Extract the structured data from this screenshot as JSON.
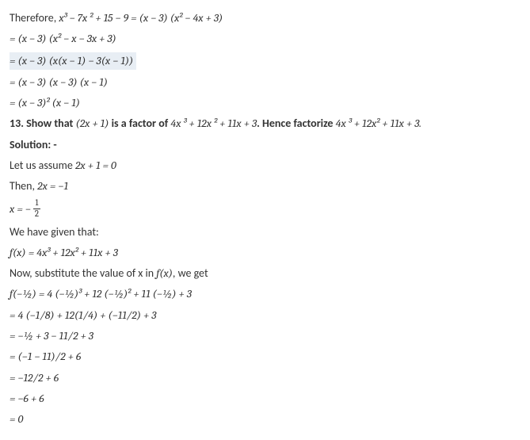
{
  "text_color": "#333333",
  "background_color": "#ffffff",
  "highlight_color": "#e8eef4",
  "font_family": "Calibri, 'Segoe UI', Arial, sans-serif",
  "font_size_pt": 10.5,
  "lines": {
    "l1_prefix": "Therefore, ",
    "l1_math": "x³ − 7x ² + 15 − 9  =  (x − 3) (x² − 4x + 3)",
    "l2": "=  (x − 3) (x² − x − 3x + 3)",
    "l3": "=  (x − 3) (x(x − 1) − 3(x − 1))",
    "l4": "=  (x − 3) (x − 3) (x − 1)",
    "l5": "=  (x − 3)² (x − 1)",
    "q_num": "13. Show that ",
    "q_a": "(2x + 1)",
    "q_mid": " is a factor of ",
    "q_b": "4x ³ + 12x ² + 11x + 3",
    "q_hence": ". Hence factorize ",
    "q_c": "4x ³ + 12x² + 11x + 3.",
    "sol": "Solution: -",
    "assume_prefix": "Let us assume ",
    "assume_math": "2x + 1  =  0",
    "then_prefix": "Then, ",
    "then_math": "2x  =  −1",
    "x_eq": "x  =  ",
    "neg": "−",
    "frac_num": "1",
    "frac_den": "2",
    "given": "We have given that:",
    "fx_prefix": " f(x)  =  ",
    "fx_math": "4x³  + 12x²  + 11x + 3",
    "sub_prefix": "Now, substitute the value of x in ",
    "sub_math": "f(x)",
    "sub_suffix": ", we get",
    "e1": "f(−½)  =  4 (−½)³  + 12 (−½)²  + 11 (−½)  + 3",
    "e2": "=  4 (−1/8)  + 12(1/4)  + (−11/2)  + 3",
    "e3": "=  −½  + 3 − 11/2  + 3",
    "e4": "=  (−1 − 11)/2 + 6",
    "e5": "=  −12/2 + 6",
    "e6": "=  −6  + 6",
    "e7": "=  0"
  }
}
